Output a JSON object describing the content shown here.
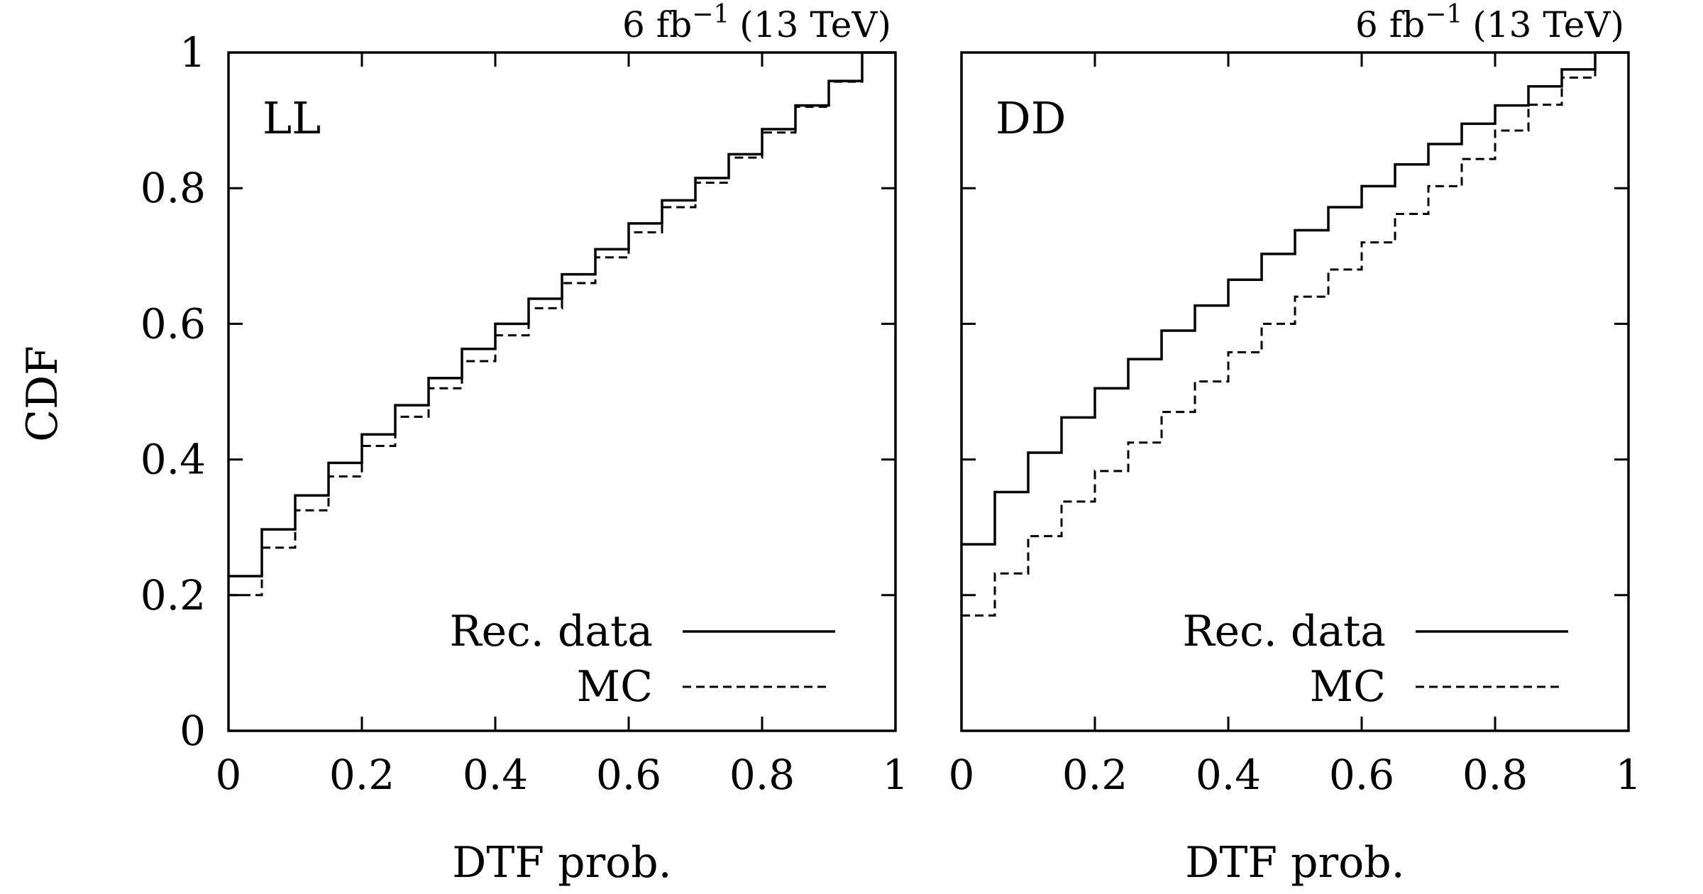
{
  "figure": {
    "ylabel": "CDF",
    "xlabel": "DTF prob."
  },
  "chart_data": [
    {
      "type": "line",
      "drawstyle": "steps",
      "panel_label": "LL",
      "luminosity_base": "6 fb",
      "luminosity_exp": "−1",
      "luminosity_suffix": "(13 TeV)",
      "xlabel": "DTF prob.",
      "ylabel": "CDF",
      "xlim": [
        0,
        1
      ],
      "ylim": [
        0,
        1
      ],
      "xticks": [
        "0",
        "0.2",
        "0.4",
        "0.6",
        "0.8",
        "1"
      ],
      "yticks": [
        "0",
        "0.2",
        "0.4",
        "0.6",
        "0.8",
        "1"
      ],
      "grid": false,
      "legend_position": "bottom-right",
      "bin_edges": [
        0,
        0.05,
        0.1,
        0.15,
        0.2,
        0.25,
        0.3,
        0.35,
        0.4,
        0.45,
        0.5,
        0.55,
        0.6,
        0.65,
        0.7,
        0.75,
        0.8,
        0.85,
        0.9,
        0.95,
        1.0
      ],
      "series": [
        {
          "name": "Rec. data",
          "style": "solid",
          "values": [
            0.228,
            0.297,
            0.347,
            0.395,
            0.437,
            0.48,
            0.52,
            0.563,
            0.6,
            0.637,
            0.673,
            0.71,
            0.748,
            0.782,
            0.815,
            0.85,
            0.887,
            0.922,
            0.958,
            1.0
          ]
        },
        {
          "name": "MC",
          "style": "dashed",
          "values": [
            0.2,
            0.27,
            0.325,
            0.375,
            0.42,
            0.463,
            0.505,
            0.545,
            0.583,
            0.623,
            0.66,
            0.698,
            0.735,
            0.772,
            0.808,
            0.845,
            0.882,
            0.92,
            0.957,
            1.0
          ]
        }
      ]
    },
    {
      "type": "line",
      "drawstyle": "steps",
      "panel_label": "DD",
      "luminosity_base": "6 fb",
      "luminosity_exp": "−1",
      "luminosity_suffix": "(13 TeV)",
      "xlabel": "DTF prob.",
      "xlim": [
        0,
        1
      ],
      "ylim": [
        0,
        1
      ],
      "xticks": [
        "0",
        "0.2",
        "0.4",
        "0.6",
        "0.8",
        "1"
      ],
      "grid": false,
      "legend_position": "bottom-right",
      "bin_edges": [
        0,
        0.05,
        0.1,
        0.15,
        0.2,
        0.25,
        0.3,
        0.35,
        0.4,
        0.45,
        0.5,
        0.55,
        0.6,
        0.65,
        0.7,
        0.75,
        0.8,
        0.85,
        0.9,
        0.95,
        1.0
      ],
      "series": [
        {
          "name": "Rec. data",
          "style": "solid",
          "values": [
            0.275,
            0.352,
            0.41,
            0.462,
            0.505,
            0.548,
            0.59,
            0.627,
            0.665,
            0.703,
            0.738,
            0.772,
            0.803,
            0.835,
            0.865,
            0.895,
            0.922,
            0.95,
            0.975,
            1.0
          ]
        },
        {
          "name": "MC",
          "style": "dashed",
          "values": [
            0.17,
            0.232,
            0.287,
            0.338,
            0.383,
            0.425,
            0.47,
            0.515,
            0.558,
            0.6,
            0.64,
            0.68,
            0.72,
            0.762,
            0.803,
            0.843,
            0.885,
            0.923,
            0.963,
            1.0
          ]
        }
      ]
    }
  ]
}
